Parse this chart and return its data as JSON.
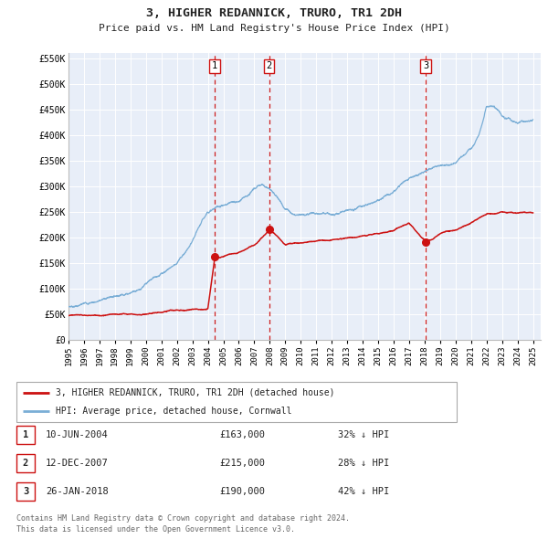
{
  "title": "3, HIGHER REDANNICK, TRURO, TR1 2DH",
  "subtitle": "Price paid vs. HM Land Registry's House Price Index (HPI)",
  "background_color": "#ffffff",
  "plot_bg_color": "#e8eef8",
  "grid_color": "#ffffff",
  "ylim": [
    0,
    560000
  ],
  "yticks": [
    0,
    50000,
    100000,
    150000,
    200000,
    250000,
    300000,
    350000,
    400000,
    450000,
    500000,
    550000
  ],
  "ytick_labels": [
    "£0",
    "£50K",
    "£100K",
    "£150K",
    "£200K",
    "£250K",
    "£300K",
    "£350K",
    "£400K",
    "£450K",
    "£500K",
    "£550K"
  ],
  "hpi_color": "#7aaed6",
  "price_color": "#cc1111",
  "vline_color": "#cc1111",
  "transactions": [
    {
      "label": "1",
      "date_str": "10-JUN-2004",
      "year": 2004.44,
      "price": 163000,
      "pct": "32%",
      "direction": "↓"
    },
    {
      "label": "2",
      "date_str": "12-DEC-2007",
      "year": 2007.95,
      "price": 215000,
      "pct": "28%",
      "direction": "↓"
    },
    {
      "label": "3",
      "date_str": "26-JAN-2018",
      "year": 2018.07,
      "price": 190000,
      "pct": "42%",
      "direction": "↓"
    }
  ],
  "legend_line1": "3, HIGHER REDANNICK, TRURO, TR1 2DH (detached house)",
  "legend_line2": "HPI: Average price, detached house, Cornwall",
  "footer1": "Contains HM Land Registry data © Crown copyright and database right 2024.",
  "footer2": "This data is licensed under the Open Government Licence v3.0.",
  "xlim_start": 1995,
  "xlim_end": 2025.5,
  "xticks": [
    1995,
    1996,
    1997,
    1998,
    1999,
    2000,
    2001,
    2002,
    2003,
    2004,
    2005,
    2006,
    2007,
    2008,
    2009,
    2010,
    2011,
    2012,
    2013,
    2014,
    2015,
    2016,
    2017,
    2018,
    2019,
    2020,
    2021,
    2022,
    2023,
    2024,
    2025
  ]
}
